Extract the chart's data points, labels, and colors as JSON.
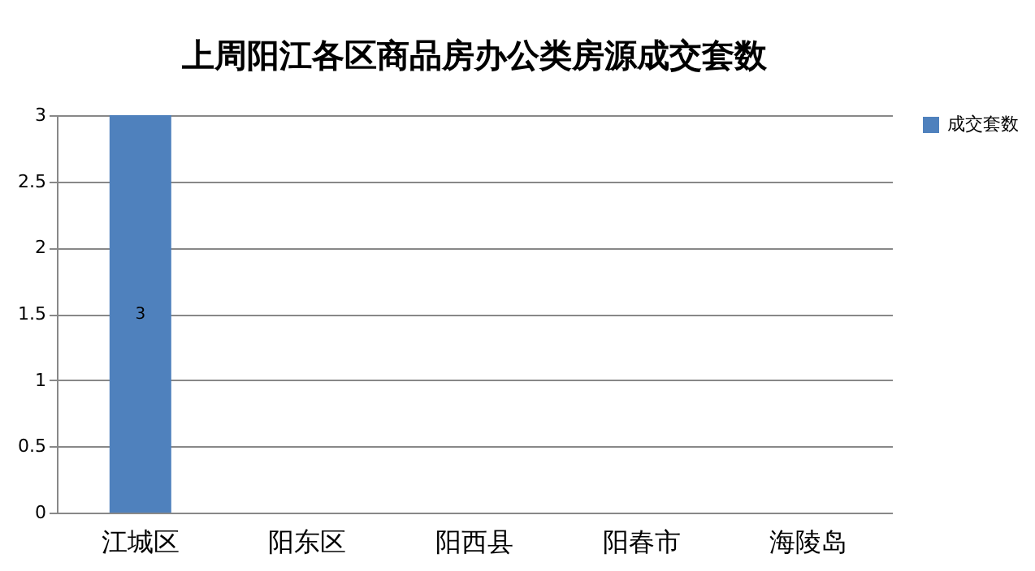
{
  "chart_data": {
    "type": "bar",
    "title": "上周阳江各区商品房办公类房源成交套数",
    "categories": [
      "江城区",
      "阳东区",
      "阳西县",
      "阳春市",
      "海陵岛"
    ],
    "series": [
      {
        "name": "成交套数",
        "color": "#4f81bd",
        "values": [
          3,
          0,
          0,
          0,
          0
        ]
      }
    ],
    "value_labels": [
      "3",
      null,
      null,
      null,
      null
    ],
    "ylim": [
      0,
      3
    ],
    "yticks": [
      0,
      0.5,
      1,
      1.5,
      2,
      2.5,
      3
    ],
    "grid": "y",
    "legend": "right"
  }
}
